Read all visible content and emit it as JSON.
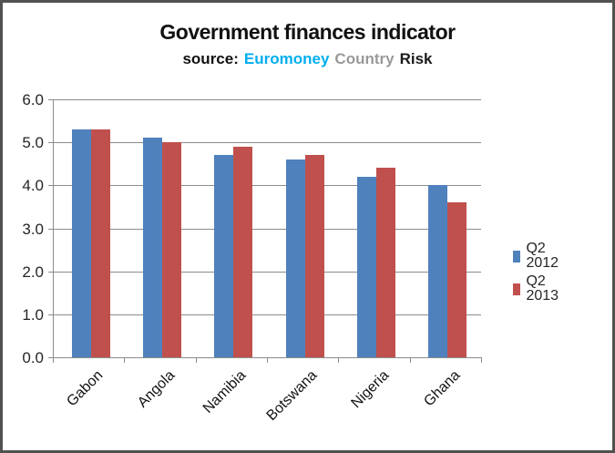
{
  "title": "Government finances indicator",
  "subtitle": {
    "prefix": "source:",
    "brand": [
      {
        "text": "Euromoney",
        "color": "#00AEEF"
      },
      {
        "text": "Country",
        "color": "#999999"
      },
      {
        "text": "Risk",
        "color": "#1A1A1A"
      }
    ]
  },
  "colors": {
    "series_q2_2012": "#4F81BD",
    "series_q2_2013": "#C0504D",
    "gridline": "#8C8C8C",
    "axis": "#8C8C8C",
    "frame_border": "#515151",
    "background": "#FFFFFF"
  },
  "chart_data": {
    "type": "bar",
    "title": "Government finances indicator",
    "subtitle": "source: Euromoney Country Risk",
    "categories": [
      "Gabon",
      "Angola",
      "Namibia",
      "Botswana",
      "Nigeria",
      "Ghana"
    ],
    "series": [
      {
        "name": "Q2 2012",
        "color": "#4F81BD",
        "values": [
          5.3,
          5.1,
          4.7,
          4.6,
          4.2,
          4.0
        ]
      },
      {
        "name": "Q2 2013",
        "color": "#C0504D",
        "values": [
          5.3,
          5.0,
          4.9,
          4.7,
          4.4,
          3.6
        ]
      }
    ],
    "ylim": [
      0,
      6
    ],
    "ytick_step": 1.0,
    "ytick_labels": [
      "0.0",
      "1.0",
      "2.0",
      "3.0",
      "4.0",
      "5.0",
      "6.0"
    ],
    "grid": true,
    "legend_position": "right",
    "xlabel": "",
    "ylabel": ""
  },
  "legend": {
    "items": [
      {
        "label": "Q2 2012",
        "color": "#4F81BD"
      },
      {
        "label": "Q2 2013",
        "color": "#C0504D"
      }
    ]
  }
}
